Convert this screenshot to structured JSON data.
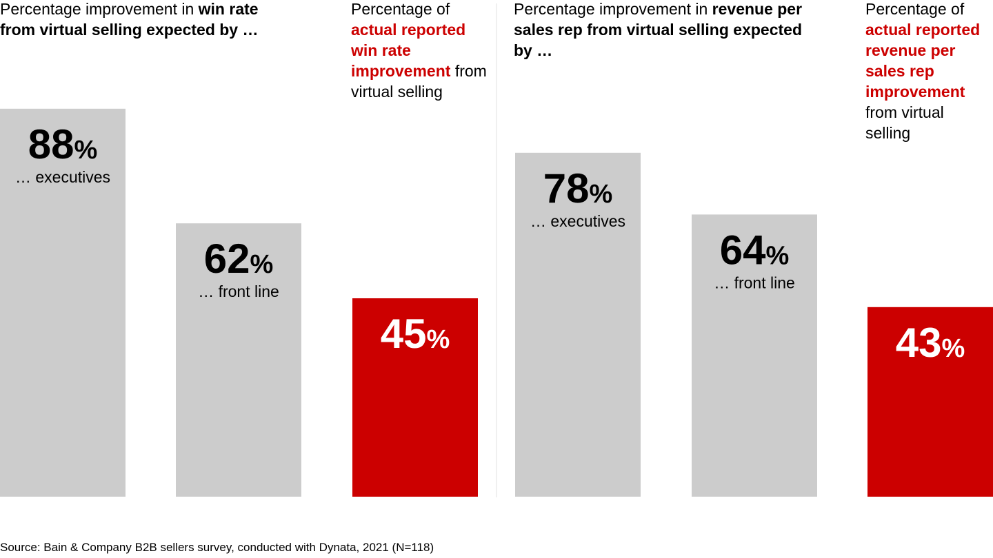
{
  "chart_data": [
    {
      "type": "bar",
      "title": [
        {
          "text": "Percentage improvement in ",
          "bold": false
        },
        {
          "text": "win rate",
          "bold": true
        },
        {
          "text": " from virtual selling expected by …",
          "bold": true
        }
      ],
      "annotation": [
        {
          "text": "Percentage of ",
          "bold": false,
          "color": "#000000"
        },
        {
          "text": "actual reported win rate improvement",
          "bold": true,
          "color": "#cc0000"
        },
        {
          "text": " from virtual selling",
          "bold": false,
          "color": "#000000"
        }
      ],
      "categories": [
        "… executives",
        "… front line",
        null
      ],
      "values": [
        88,
        62,
        45
      ],
      "unit": "%",
      "colors": [
        "#cccccc",
        "#cccccc",
        "#cc0000"
      ],
      "label_colors": [
        "#000000",
        "#000000",
        "#ffffff"
      ],
      "ylim": [
        0,
        100
      ]
    },
    {
      "type": "bar",
      "title": [
        {
          "text": "Percentage improvement in ",
          "bold": false
        },
        {
          "text": "revenue per sales rep from virtual selling expected by …",
          "bold": true
        }
      ],
      "annotation": [
        {
          "text": "Percentage of ",
          "bold": false,
          "color": "#000000"
        },
        {
          "text": "actual reported revenue per sales rep improvement",
          "bold": true,
          "color": "#cc0000"
        },
        {
          "text": " from virtual selling",
          "bold": false,
          "color": "#000000"
        }
      ],
      "categories": [
        "… executives",
        "… front line",
        null
      ],
      "values": [
        78,
        64,
        43
      ],
      "unit": "%",
      "colors": [
        "#cccccc",
        "#cccccc",
        "#cc0000"
      ],
      "label_colors": [
        "#000000",
        "#000000",
        "#ffffff"
      ],
      "ylim": [
        0,
        100
      ]
    }
  ],
  "source": "Source: Bain & Company B2B sellers survey, conducted with Dynata, 2021 (N=118)"
}
